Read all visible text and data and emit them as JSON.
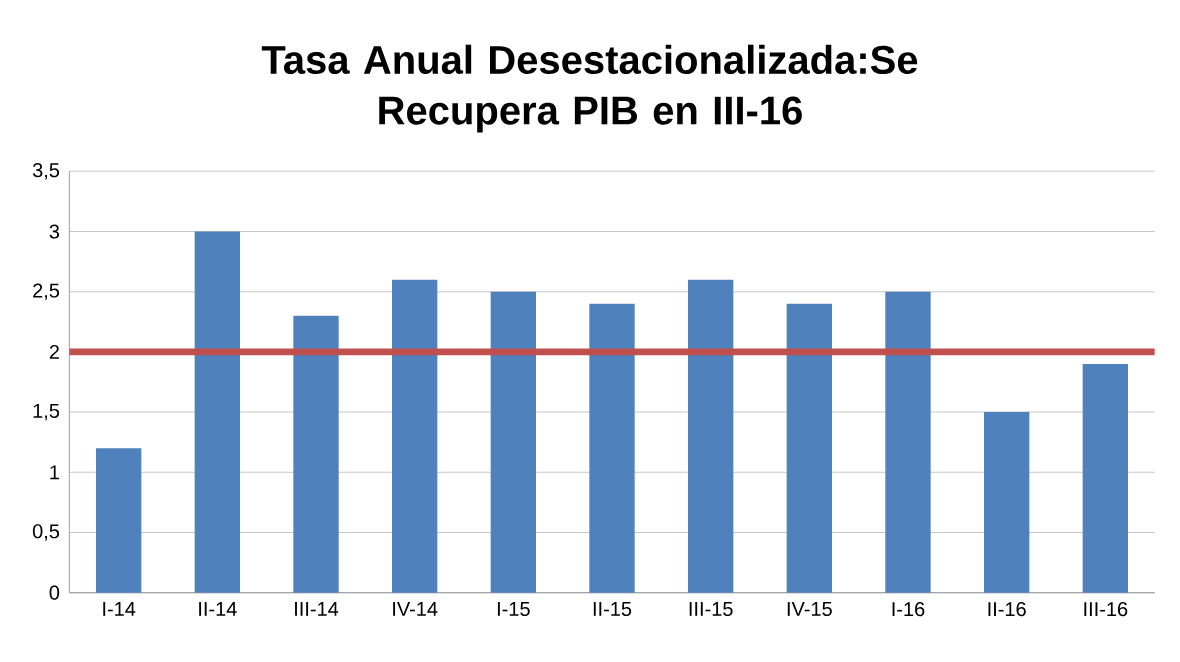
{
  "chart_data": {
    "type": "bar",
    "title": "Tasa Anual Desestacionalizada:Se Recupera PIB en III-16",
    "categories": [
      "I-14",
      "II-14",
      "III-14",
      "IV-14",
      "I-15",
      "II-15",
      "III-15",
      "IV-15",
      "I-16",
      "II-16",
      "III-16"
    ],
    "values": [
      1.2,
      3.0,
      2.3,
      2.6,
      2.5,
      2.4,
      2.6,
      2.4,
      2.5,
      1.5,
      1.9
    ],
    "color": "#4f81bd",
    "ylim": [
      0,
      3.5
    ],
    "yticks": [
      0,
      {
        "value": 0.5,
        "label": "0,5"
      },
      1,
      {
        "value": 1.5,
        "label": "1,5"
      },
      2,
      {
        "value": 2.5,
        "label": "2,5"
      },
      3,
      {
        "value": 3.5,
        "label": "3,5"
      }
    ],
    "grid": "y",
    "ref_lines": [
      {
        "axis": "y",
        "value": 2,
        "color": "#c0504d"
      }
    ]
  }
}
